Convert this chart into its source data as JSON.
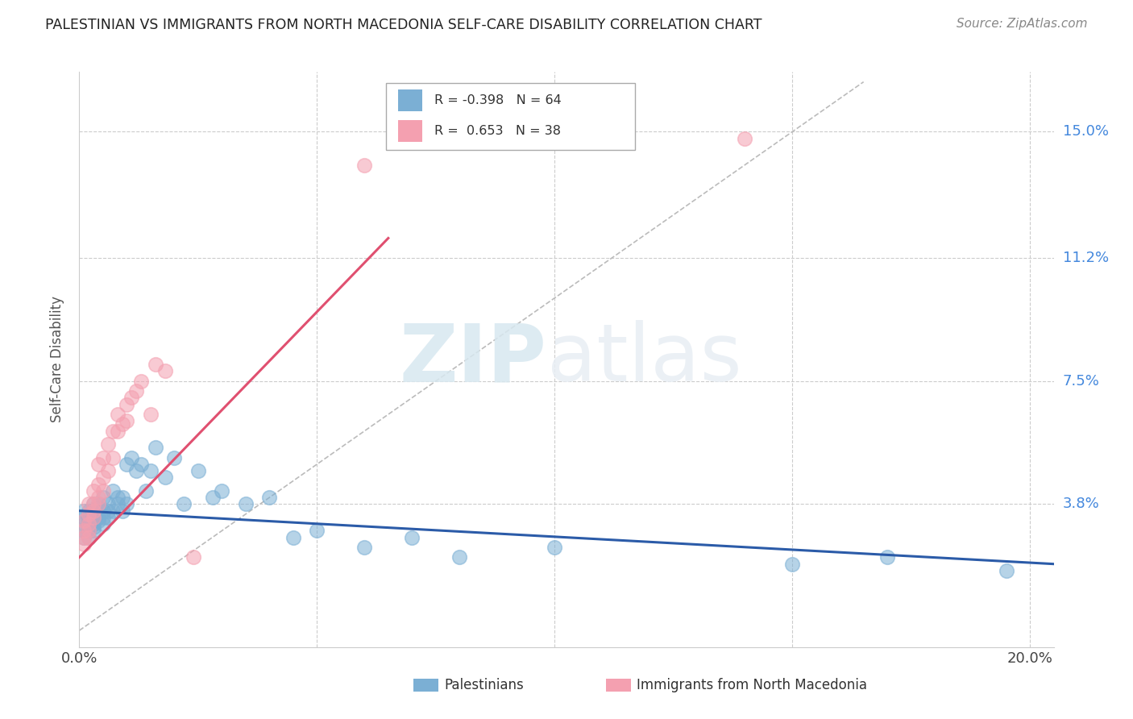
{
  "title": "PALESTINIAN VS IMMIGRANTS FROM NORTH MACEDONIA SELF-CARE DISABILITY CORRELATION CHART",
  "source": "Source: ZipAtlas.com",
  "xlabel_palestinians": "Palestinians",
  "xlabel_macedonia": "Immigrants from North Macedonia",
  "ylabel": "Self-Care Disability",
  "xlim": [
    0.0,
    0.205
  ],
  "ylim": [
    -0.005,
    0.168
  ],
  "xticks": [
    0.0,
    0.05,
    0.1,
    0.15,
    0.2
  ],
  "xticklabels": [
    "0.0%",
    "",
    "",
    "",
    "20.0%"
  ],
  "ytick_positions": [
    0.038,
    0.075,
    0.112,
    0.15
  ],
  "ytick_labels": [
    "3.8%",
    "7.5%",
    "11.2%",
    "15.0%"
  ],
  "blue_color": "#7BAFD4",
  "pink_color": "#F4A0B0",
  "blue_line_color": "#2B5BA8",
  "pink_line_color": "#E05070",
  "grid_color": "#CCCCCC",
  "watermark_zip": "ZIP",
  "watermark_atlas": "atlas",
  "palestinians_x": [
    0.001,
    0.001,
    0.001,
    0.001,
    0.001,
    0.002,
    0.002,
    0.002,
    0.002,
    0.002,
    0.002,
    0.002,
    0.002,
    0.003,
    0.003,
    0.003,
    0.003,
    0.003,
    0.003,
    0.003,
    0.003,
    0.004,
    0.004,
    0.004,
    0.004,
    0.004,
    0.005,
    0.005,
    0.005,
    0.005,
    0.006,
    0.006,
    0.006,
    0.007,
    0.007,
    0.008,
    0.008,
    0.009,
    0.009,
    0.01,
    0.01,
    0.011,
    0.012,
    0.013,
    0.014,
    0.015,
    0.016,
    0.018,
    0.02,
    0.022,
    0.025,
    0.028,
    0.03,
    0.035,
    0.04,
    0.045,
    0.05,
    0.06,
    0.07,
    0.08,
    0.1,
    0.15,
    0.17,
    0.195
  ],
  "palestinians_y": [
    0.032,
    0.034,
    0.028,
    0.036,
    0.03,
    0.03,
    0.033,
    0.035,
    0.028,
    0.036,
    0.032,
    0.03,
    0.034,
    0.036,
    0.032,
    0.034,
    0.03,
    0.038,
    0.033,
    0.031,
    0.036,
    0.034,
    0.036,
    0.033,
    0.037,
    0.038,
    0.036,
    0.034,
    0.04,
    0.032,
    0.038,
    0.036,
    0.034,
    0.042,
    0.036,
    0.038,
    0.04,
    0.036,
    0.04,
    0.05,
    0.038,
    0.052,
    0.048,
    0.05,
    0.042,
    0.048,
    0.055,
    0.046,
    0.052,
    0.038,
    0.048,
    0.04,
    0.042,
    0.038,
    0.04,
    0.028,
    0.03,
    0.025,
    0.028,
    0.022,
    0.025,
    0.02,
    0.022,
    0.018
  ],
  "macedonia_x": [
    0.001,
    0.001,
    0.001,
    0.001,
    0.002,
    0.002,
    0.002,
    0.002,
    0.002,
    0.003,
    0.003,
    0.003,
    0.003,
    0.004,
    0.004,
    0.004,
    0.004,
    0.005,
    0.005,
    0.005,
    0.006,
    0.006,
    0.007,
    0.007,
    0.008,
    0.008,
    0.009,
    0.01,
    0.01,
    0.011,
    0.012,
    0.013,
    0.015,
    0.016,
    0.018,
    0.024,
    0.06,
    0.14
  ],
  "macedonia_y": [
    0.028,
    0.03,
    0.026,
    0.033,
    0.03,
    0.032,
    0.035,
    0.038,
    0.028,
    0.034,
    0.036,
    0.038,
    0.042,
    0.038,
    0.04,
    0.044,
    0.05,
    0.042,
    0.046,
    0.052,
    0.048,
    0.056,
    0.052,
    0.06,
    0.06,
    0.065,
    0.062,
    0.063,
    0.068,
    0.07,
    0.072,
    0.075,
    0.065,
    0.08,
    0.078,
    0.022,
    0.14,
    0.148
  ],
  "blue_trend_x": [
    0.0,
    0.205
  ],
  "blue_trend_y": [
    0.036,
    0.02
  ],
  "pink_trend_x": [
    0.0,
    0.065
  ],
  "pink_trend_y": [
    0.022,
    0.118
  ],
  "ref_line_x": [
    0.0,
    0.165
  ],
  "ref_line_y": [
    0.0,
    0.165
  ]
}
